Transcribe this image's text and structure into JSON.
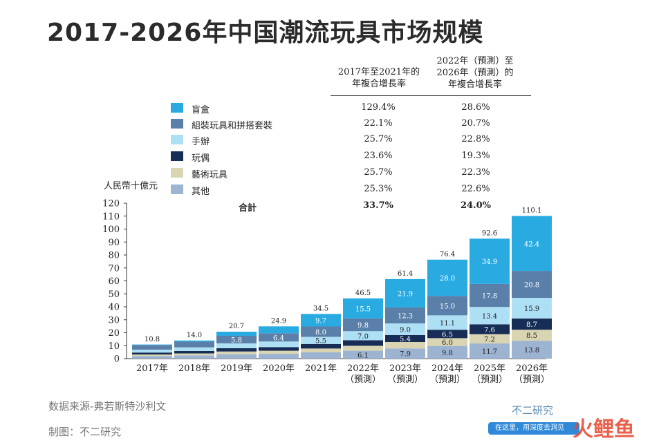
{
  "title": "2017-2026年中国潮流玩具市场规模",
  "header": {
    "col1": [
      "2017年至2021年的",
      "年複合增長率"
    ],
    "col2": [
      "2022年（預測）至",
      "2026年（預測）的",
      "年複合增長率"
    ]
  },
  "unit_label": "人民幣十億元",
  "legend": [
    {
      "name": "盲盒",
      "color": "#29abe2",
      "cagr1": "129.4%",
      "cagr2": "28.6%"
    },
    {
      "name": "組裝玩具和拼搭套裝",
      "color": "#5a7fa8",
      "cagr1": "22.1%",
      "cagr2": "20.7%"
    },
    {
      "name": "手辦",
      "color": "#aee0f5",
      "cagr1": "25.7%",
      "cagr2": "22.8%"
    },
    {
      "name": "玩偶",
      "color": "#172d55",
      "cagr1": "23.6%",
      "cagr2": "19.3%"
    },
    {
      "name": "藝術玩具",
      "color": "#d9d5b3",
      "cagr1": "25.7%",
      "cagr2": "22.3%"
    },
    {
      "name": "其他",
      "color": "#9db3d2",
      "cagr1": "25.3%",
      "cagr2": "22.6%"
    }
  ],
  "total_row": {
    "label": "合計",
    "cagr1": "33.7%",
    "cagr2": "24.0%"
  },
  "chart_data": {
    "type": "bar",
    "stacked": true,
    "categories": [
      "2017年",
      "2018年",
      "2019年",
      "2020年",
      "2021年",
      "2022年",
      "2023年",
      "2024年",
      "2025年",
      "2026年"
    ],
    "category_sublabels": [
      "",
      "",
      "",
      "",
      "",
      "（預測）",
      "（預測）",
      "（預測）",
      "（預測）",
      "（預測）"
    ],
    "ylim": [
      0,
      120
    ],
    "yticks": [
      0,
      10,
      20,
      30,
      40,
      50,
      60,
      70,
      80,
      90,
      100,
      110,
      120
    ],
    "totals": [
      10.8,
      14.0,
      20.7,
      24.9,
      34.5,
      46.5,
      61.4,
      76.4,
      92.6,
      110.1
    ],
    "series": [
      {
        "name": "其他",
        "values": [
          2.0,
          2.5,
          3.4,
          3.7,
          4.8,
          6.1,
          7.9,
          9.8,
          11.7,
          13.8
        ]
      },
      {
        "name": "藝術玩具",
        "values": [
          1.2,
          1.5,
          2.1,
          2.4,
          3.0,
          3.8,
          4.9,
          6.0,
          7.2,
          8.5
        ]
      },
      {
        "name": "玩偶",
        "values": [
          1.5,
          1.9,
          2.5,
          2.8,
          3.5,
          4.3,
          5.4,
          6.5,
          7.6,
          8.7
        ]
      },
      {
        "name": "手辦",
        "values": [
          2.2,
          2.8,
          3.8,
          4.3,
          5.5,
          7.0,
          9.0,
          11.1,
          13.4,
          15.9
        ]
      },
      {
        "name": "組裝玩具和拼搭套裝",
        "values": [
          3.6,
          4.4,
          5.8,
          6.4,
          8.0,
          9.8,
          12.3,
          15.0,
          17.8,
          20.8
        ]
      },
      {
        "name": "盲盒",
        "values": [
          0.4,
          0.9,
          3.2,
          5.3,
          9.7,
          15.5,
          21.9,
          28.0,
          34.9,
          42.4
        ]
      }
    ]
  },
  "footer": {
    "source": "数据来源-弗若斯特沙利文",
    "credit": "制图：不二研究"
  },
  "watermark": {
    "brand": "不二研究",
    "bar_text": "在这里，用深度去洞见",
    "logo": "火鲤鱼"
  }
}
